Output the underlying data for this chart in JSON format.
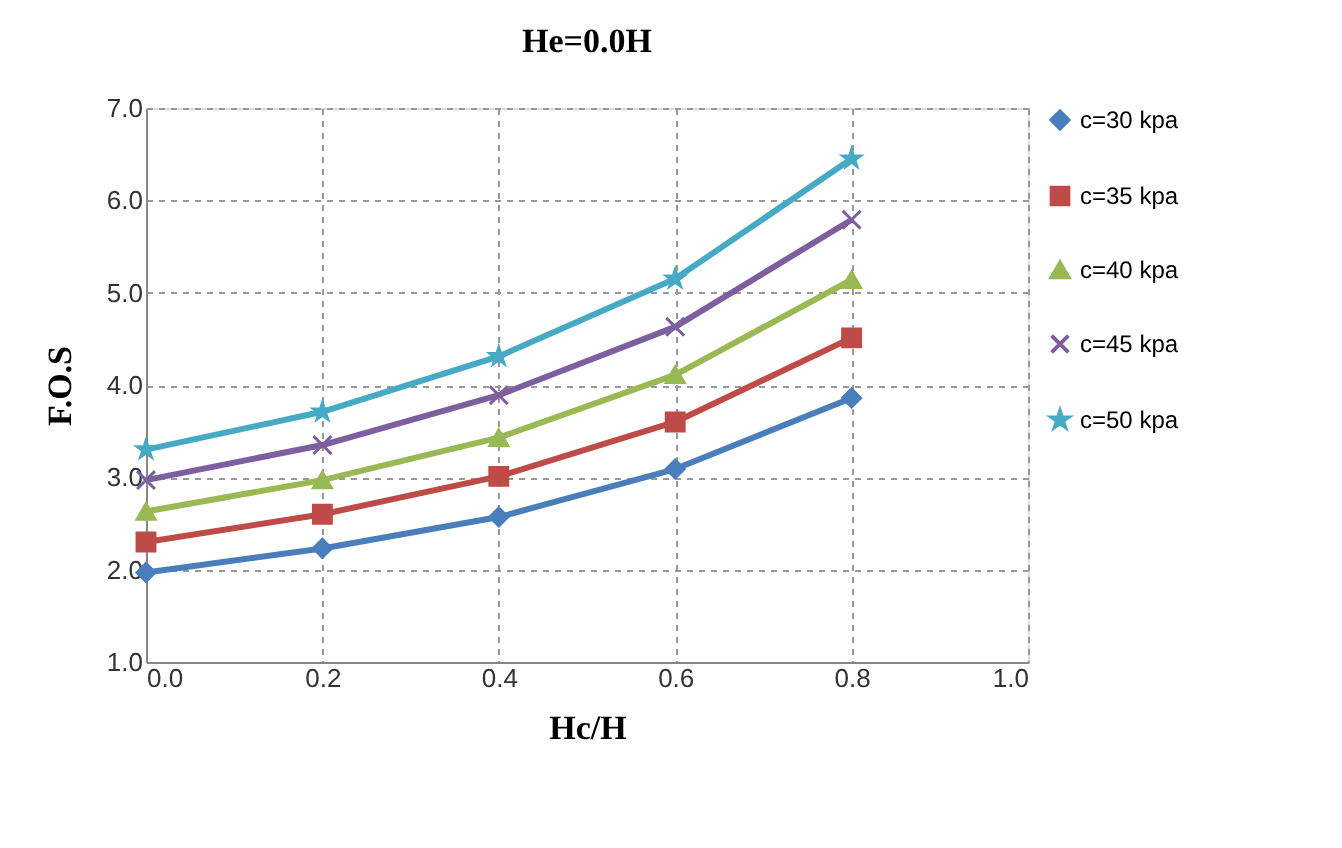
{
  "chart_data": {
    "type": "line",
    "title": "He=0.0H",
    "xlabel": "Hc/H",
    "ylabel": "F.O.S",
    "x": [
      0.0,
      0.2,
      0.4,
      0.6,
      0.8
    ],
    "xlim": [
      0.0,
      1.0
    ],
    "xticks": [
      {
        "value": 0,
        "label": "0.0"
      },
      0.2,
      0.4,
      0.6,
      0.8,
      {
        "value": 1,
        "label": "1.0"
      }
    ],
    "ylim": [
      1.0,
      7.0
    ],
    "yticks": [
      {
        "value": 1,
        "label": "1.0"
      },
      {
        "value": 2,
        "label": "2.0"
      },
      {
        "value": 3,
        "label": "3.0"
      },
      {
        "value": 4,
        "label": "4.0"
      },
      {
        "value": 5,
        "label": "5.0"
      },
      {
        "value": 6,
        "label": "6.0"
      },
      {
        "value": 7,
        "label": "7.0"
      }
    ],
    "grid": true,
    "legend": "right",
    "line_style": "solid",
    "series": [
      {
        "name": "c=30 kpa",
        "color": "#4a7ebb",
        "marker": "diamond",
        "values": [
          1.97,
          2.23,
          2.57,
          3.09,
          3.86
        ]
      },
      {
        "name": "c=35 kpa",
        "color": "#be4b48",
        "marker": "square",
        "values": [
          2.3,
          2.6,
          3.01,
          3.6,
          4.51
        ]
      },
      {
        "name": "c=40 kpa",
        "color": "#98b954",
        "marker": "triangle",
        "values": [
          2.63,
          2.97,
          3.43,
          4.11,
          5.14
        ]
      },
      {
        "name": "c=45 kpa",
        "color": "#7d5fa0",
        "marker": "cross",
        "values": [
          2.97,
          3.35,
          3.89,
          4.63,
          5.79
        ]
      },
      {
        "name": "c=50 kpa",
        "color": "#46aac5",
        "marker": "star",
        "values": [
          3.3,
          3.71,
          4.31,
          5.15,
          6.45
        ]
      }
    ]
  }
}
